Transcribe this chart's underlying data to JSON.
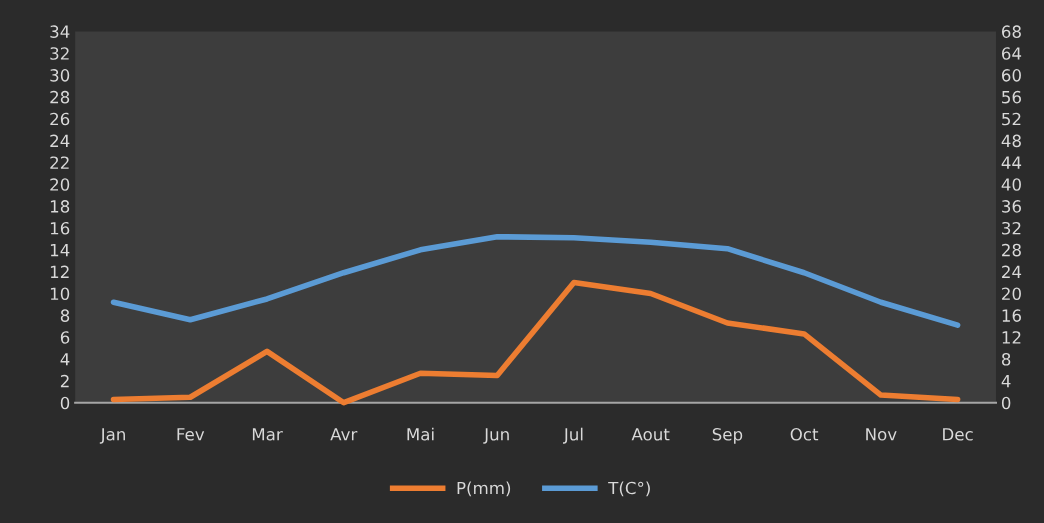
{
  "chart_data": {
    "type": "line",
    "categories": [
      "Jan",
      "Fev",
      "Mar",
      "Avr",
      "Mai",
      "Jun",
      "Jul",
      "Aout",
      "Sep",
      "Oct",
      "Nov",
      "Dec"
    ],
    "series": [
      {
        "name": "P(mm)",
        "color": "#ed7d31",
        "axis": "y2",
        "values": [
          0.6,
          1,
          9.4,
          0,
          5.4,
          5,
          22,
          20,
          14.6,
          12.6,
          1.4,
          0.6
        ]
      },
      {
        "name": "T(C°)",
        "color": "#5b9bd5",
        "values": [
          9.2,
          7.6,
          9.5,
          11.9,
          14,
          15.2,
          15.1,
          14.7,
          14.1,
          11.9,
          9.2,
          7.1
        ]
      }
    ],
    "ylim": [
      0,
      34
    ],
    "yticks": [
      0,
      2,
      4,
      6,
      8,
      10,
      12,
      14,
      16,
      18,
      20,
      22,
      24,
      26,
      28,
      30,
      32,
      34
    ],
    "y2lim": [
      0,
      68
    ],
    "y2ticks": [
      0,
      4,
      8,
      12,
      16,
      20,
      24,
      28,
      32,
      36,
      40,
      44,
      48,
      52,
      56,
      60,
      64,
      68
    ],
    "legend": "bottom",
    "marker": "none",
    "line_style": "solid"
  }
}
